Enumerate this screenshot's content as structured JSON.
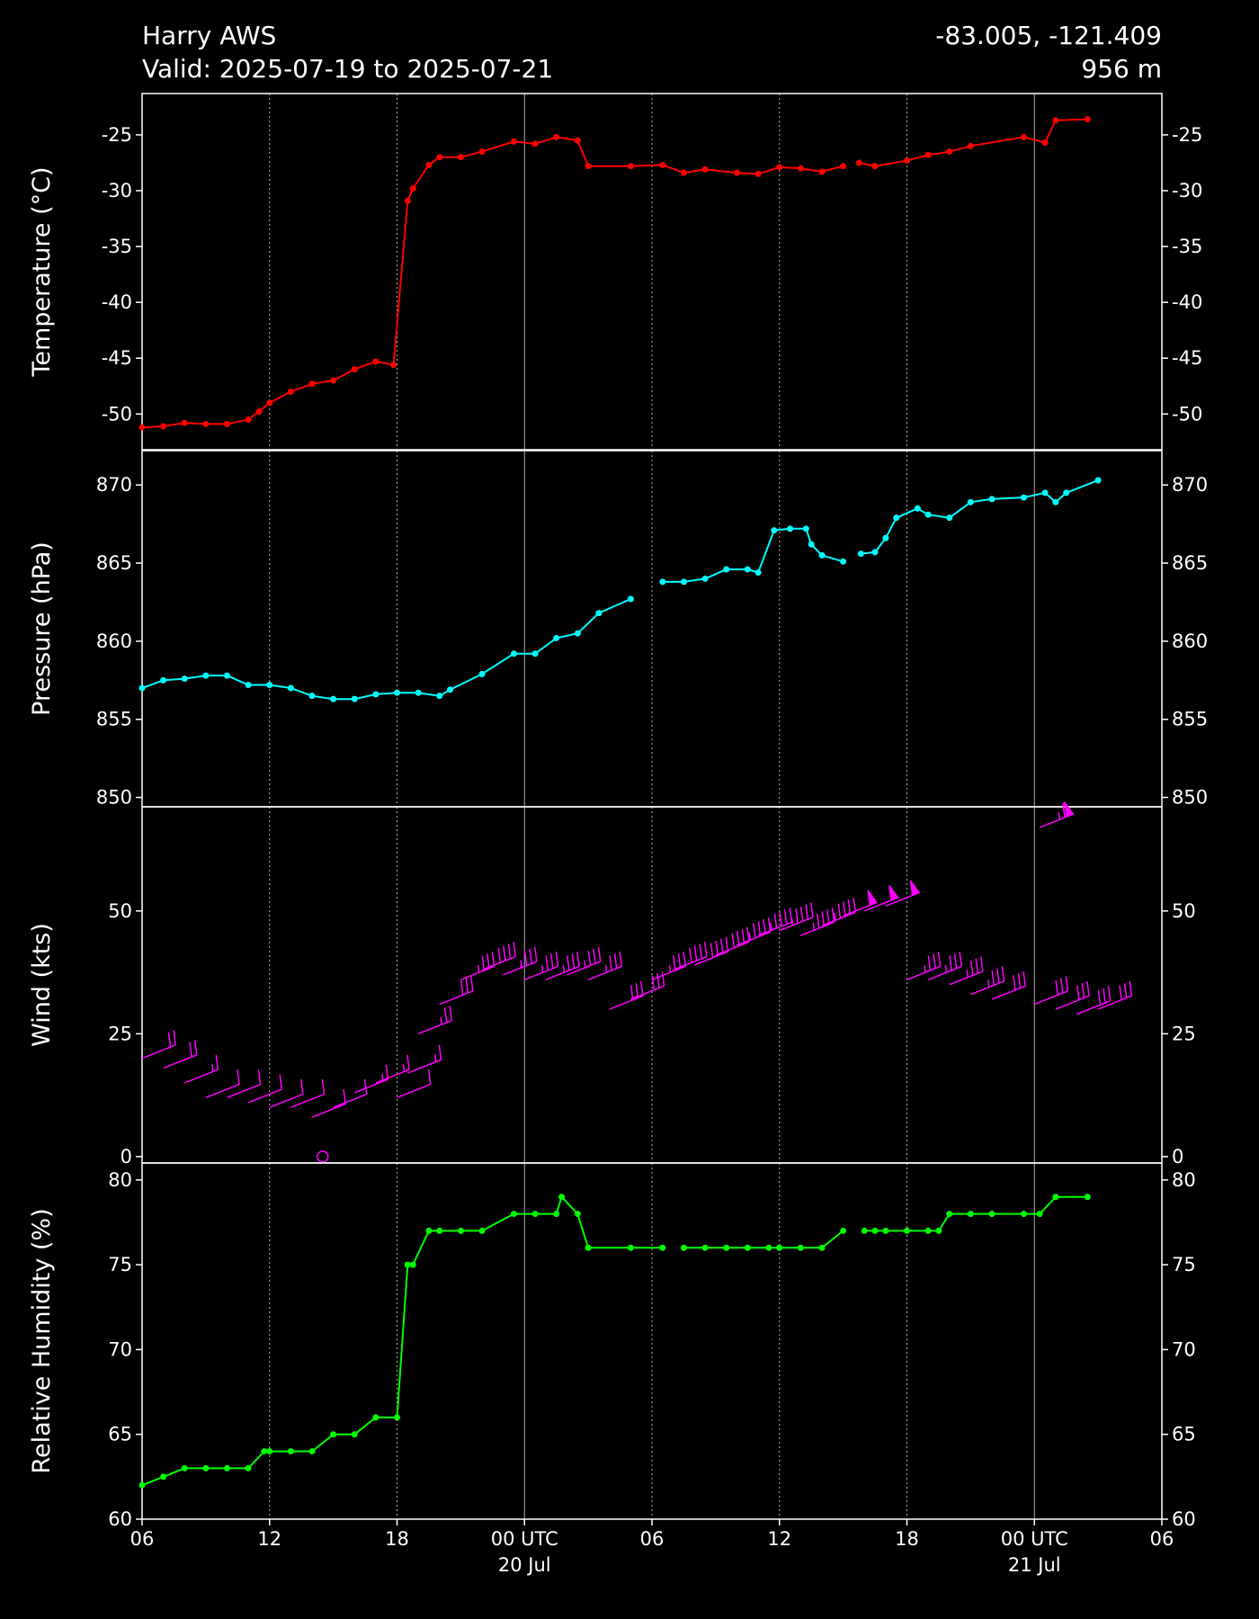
{
  "header": {
    "station": "Harry AWS",
    "valid": "Valid: 2025-07-19 to 2025-07-21",
    "coords": "-83.005, -121.409",
    "elevation": "956 m"
  },
  "chart_data": [
    {
      "type": "line",
      "ylabel": "Temperature (°C)",
      "color": "#ff0000",
      "x": [
        "2025-07-19 06:00",
        "2025-07-19 07:00",
        "2025-07-19 08:00",
        "2025-07-19 09:00",
        "2025-07-19 10:00",
        "2025-07-19 11:00",
        "2025-07-19 11:30",
        "2025-07-19 12:00",
        "2025-07-19 13:00",
        "2025-07-19 14:00",
        "2025-07-19 15:00",
        "2025-07-19 16:00",
        "2025-07-19 17:00",
        "2025-07-19 17:50",
        "2025-07-19 18:30",
        "2025-07-19 18:45",
        "2025-07-19 19:30",
        "2025-07-19 20:00",
        "2025-07-19 21:00",
        "2025-07-19 22:00",
        "2025-07-19 23:30",
        "2025-07-20 00:30",
        "2025-07-20 01:30",
        "2025-07-20 02:30",
        "2025-07-20 03:00",
        "2025-07-20 05:00",
        "2025-07-20 06:30",
        "2025-07-20 07:30",
        "2025-07-20 08:30",
        "2025-07-20 10:00",
        "2025-07-20 11:00",
        "2025-07-20 12:00",
        "2025-07-20 13:00",
        "2025-07-20 14:00",
        "2025-07-20 15:00",
        "2025-07-20 15:20",
        "2025-07-20 15:45",
        "2025-07-20 16:30",
        "2025-07-20 18:00",
        "2025-07-20 19:00",
        "2025-07-20 20:00",
        "2025-07-20 21:00",
        "2025-07-20 23:30",
        "2025-07-21 00:30",
        "2025-07-21 01:00",
        "2025-07-21 02:30"
      ],
      "values": [
        -51.2,
        -51.1,
        -50.8,
        -50.9,
        -50.9,
        -50.5,
        -49.8,
        -49.0,
        -48.0,
        -47.3,
        -47.0,
        -46.0,
        -45.3,
        -45.6,
        -30.9,
        -29.8,
        -27.7,
        -27.0,
        -27.0,
        -26.5,
        -25.6,
        -25.8,
        -25.2,
        -25.5,
        -27.8,
        -27.8,
        -27.7,
        -28.4,
        -28.1,
        -28.4,
        -28.5,
        -27.9,
        -28.0,
        -28.3,
        -27.8,
        null,
        -27.5,
        -27.8,
        -27.3,
        -26.8,
        -26.5,
        -26.0,
        -25.2,
        -25.7,
        -23.7,
        -23.6
      ],
      "xlim": [
        "2025-07-19 06:00",
        "2025-07-21 06:00"
      ],
      "ylim": [
        -53.2,
        -21.3
      ],
      "yticks": [
        -50,
        -45,
        -40,
        -35,
        -30,
        -25
      ]
    },
    {
      "type": "line",
      "ylabel": "Pressure (hPa)",
      "color": "#00ffff",
      "x": [
        "2025-07-19 06:00",
        "2025-07-19 07:00",
        "2025-07-19 08:00",
        "2025-07-19 09:00",
        "2025-07-19 10:00",
        "2025-07-19 11:00",
        "2025-07-19 12:00",
        "2025-07-19 13:00",
        "2025-07-19 14:00",
        "2025-07-19 15:00",
        "2025-07-19 16:00",
        "2025-07-19 17:00",
        "2025-07-19 18:00",
        "2025-07-19 19:00",
        "2025-07-19 20:00",
        "2025-07-19 20:30",
        "2025-07-19 22:00",
        "2025-07-19 23:30",
        "2025-07-20 00:30",
        "2025-07-20 01:30",
        "2025-07-20 02:30",
        "2025-07-20 03:30",
        "2025-07-20 05:00",
        "2025-07-20 05:40",
        "2025-07-20 06:30",
        "2025-07-20 07:30",
        "2025-07-20 08:30",
        "2025-07-20 09:30",
        "2025-07-20 10:30",
        "2025-07-20 11:00",
        "2025-07-20 11:45",
        "2025-07-20 12:30",
        "2025-07-20 13:15",
        "2025-07-20 13:30",
        "2025-07-20 14:00",
        "2025-07-20 15:00",
        "2025-07-20 15:25",
        "2025-07-20 15:50",
        "2025-07-20 16:30",
        "2025-07-20 17:00",
        "2025-07-20 17:30",
        "2025-07-20 18:30",
        "2025-07-20 19:00",
        "2025-07-20 20:00",
        "2025-07-20 21:00",
        "2025-07-20 22:00",
        "2025-07-20 23:30",
        "2025-07-21 00:30",
        "2025-07-21 01:00",
        "2025-07-21 01:30",
        "2025-07-21 03:00"
      ],
      "values": [
        857.0,
        857.5,
        857.6,
        857.8,
        857.8,
        857.2,
        857.2,
        857.0,
        856.5,
        856.3,
        856.3,
        856.6,
        856.7,
        856.7,
        856.5,
        856.9,
        857.9,
        859.2,
        859.2,
        860.2,
        860.5,
        861.8,
        862.7,
        null,
        863.8,
        863.8,
        864.0,
        864.6,
        864.6,
        864.4,
        867.1,
        867.2,
        867.2,
        866.2,
        865.5,
        865.1,
        null,
        865.6,
        865.7,
        866.6,
        867.9,
        868.5,
        868.1,
        867.9,
        868.9,
        869.1,
        869.2,
        869.5,
        868.9,
        869.5,
        870.3
      ],
      "xlim": [
        "2025-07-19 06:00",
        "2025-07-21 06:00"
      ],
      "ylim": [
        849.4,
        872.2
      ],
      "yticks": [
        850,
        855,
        860,
        865,
        870
      ]
    },
    {
      "type": "barbs",
      "ylabel": "Wind (kts)",
      "color": "#ff00ff",
      "x": [
        "2025-07-19 06:00",
        "2025-07-19 07:00",
        "2025-07-19 08:00",
        "2025-07-19 09:00",
        "2025-07-19 10:00",
        "2025-07-19 11:00",
        "2025-07-19 12:00",
        "2025-07-19 13:00",
        "2025-07-19 14:00",
        "2025-07-19 14:30",
        "2025-07-19 15:00",
        "2025-07-19 16:00",
        "2025-07-19 17:00",
        "2025-07-19 18:00",
        "2025-07-19 18:30",
        "2025-07-19 19:00",
        "2025-07-19 20:00",
        "2025-07-19 21:00",
        "2025-07-19 22:00",
        "2025-07-19 23:00",
        "2025-07-20 00:00",
        "2025-07-20 01:00",
        "2025-07-20 02:00",
        "2025-07-20 03:00",
        "2025-07-20 04:00",
        "2025-07-20 05:00",
        "2025-07-20 06:00",
        "2025-07-20 07:00",
        "2025-07-20 08:00",
        "2025-07-20 09:00",
        "2025-07-20 10:00",
        "2025-07-20 11:00",
        "2025-07-20 12:00",
        "2025-07-20 13:00",
        "2025-07-20 14:00",
        "2025-07-20 15:00",
        "2025-07-20 16:00",
        "2025-07-20 17:00",
        "2025-07-20 18:00",
        "2025-07-20 19:00",
        "2025-07-20 20:00",
        "2025-07-20 21:00",
        "2025-07-20 22:00",
        "2025-07-21 00:00",
        "2025-07-21 00:15",
        "2025-07-21 01:00",
        "2025-07-21 02:00",
        "2025-07-21 03:00"
      ],
      "values": [
        20,
        18,
        15,
        12,
        12,
        11,
        10,
        10,
        8,
        0,
        10,
        13,
        15,
        12,
        17,
        25,
        31,
        36,
        38,
        37,
        36,
        36,
        37,
        36,
        30,
        32,
        36,
        38,
        39,
        41,
        43,
        45,
        46,
        45,
        47,
        49,
        50,
        51,
        36,
        36,
        35,
        33,
        32,
        31,
        67,
        30,
        29,
        30
      ],
      "xlim": [
        "2025-07-19 06:00",
        "2025-07-21 06:00"
      ],
      "ylim": [
        -1.3,
        71.2
      ],
      "yticks": [
        0,
        25,
        50
      ]
    },
    {
      "type": "line",
      "ylabel": "Relative Humidity (%)",
      "color": "#00ff00",
      "x": [
        "2025-07-19 06:00",
        "2025-07-19 07:00",
        "2025-07-19 08:00",
        "2025-07-19 09:00",
        "2025-07-19 10:00",
        "2025-07-19 11:00",
        "2025-07-19 11:45",
        "2025-07-19 12:00",
        "2025-07-19 13:00",
        "2025-07-19 14:00",
        "2025-07-19 15:00",
        "2025-07-19 16:00",
        "2025-07-19 17:00",
        "2025-07-19 18:00",
        "2025-07-19 18:30",
        "2025-07-19 18:45",
        "2025-07-19 19:30",
        "2025-07-19 20:00",
        "2025-07-19 21:00",
        "2025-07-19 22:00",
        "2025-07-19 23:30",
        "2025-07-20 00:30",
        "2025-07-20 01:30",
        "2025-07-20 01:45",
        "2025-07-20 02:30",
        "2025-07-20 03:00",
        "2025-07-20 05:00",
        "2025-07-20 06:30",
        "2025-07-20 07:00",
        "2025-07-20 07:30",
        "2025-07-20 08:30",
        "2025-07-20 09:30",
        "2025-07-20 10:30",
        "2025-07-20 11:30",
        "2025-07-20 12:00",
        "2025-07-20 13:00",
        "2025-07-20 14:00",
        "2025-07-20 15:00",
        "2025-07-20 15:30",
        "2025-07-20 16:00",
        "2025-07-20 16:30",
        "2025-07-20 17:00",
        "2025-07-20 18:00",
        "2025-07-20 19:00",
        "2025-07-20 19:30",
        "2025-07-20 20:00",
        "2025-07-20 21:00",
        "2025-07-20 22:00",
        "2025-07-20 23:30",
        "2025-07-21 00:15",
        "2025-07-21 01:00",
        "2025-07-21 02:30"
      ],
      "values": [
        62,
        62.5,
        63,
        63,
        63,
        63,
        64,
        64,
        64,
        64,
        65,
        65,
        66,
        66,
        75,
        75,
        77,
        77,
        77,
        77,
        78,
        78,
        78,
        79,
        78,
        76,
        76,
        76,
        null,
        76,
        76,
        76,
        76,
        76,
        76,
        76,
        76,
        77,
        null,
        77,
        77,
        77,
        77,
        77,
        77,
        78,
        78,
        78,
        78,
        78,
        79,
        79
      ],
      "xlim": [
        "2025-07-19 06:00",
        "2025-07-21 06:00"
      ],
      "ylim": [
        60,
        81
      ],
      "yticks": [
        60,
        65,
        70,
        75,
        80
      ],
      "xticks": [
        {
          "value": "2025-07-19 06:00",
          "label": "06"
        },
        {
          "value": "2025-07-19 12:00",
          "label": "12"
        },
        {
          "value": "2025-07-19 18:00",
          "label": "18"
        },
        {
          "value": "2025-07-20 00:00",
          "label": "00 UTC\n20 Jul"
        },
        {
          "value": "2025-07-20 06:00",
          "label": "06"
        },
        {
          "value": "2025-07-20 12:00",
          "label": "12"
        },
        {
          "value": "2025-07-20 18:00",
          "label": "18"
        },
        {
          "value": "2025-07-21 00:00",
          "label": "00 UTC\n21 Jul"
        },
        {
          "value": "2025-07-21 06:00",
          "label": "06"
        }
      ]
    }
  ]
}
